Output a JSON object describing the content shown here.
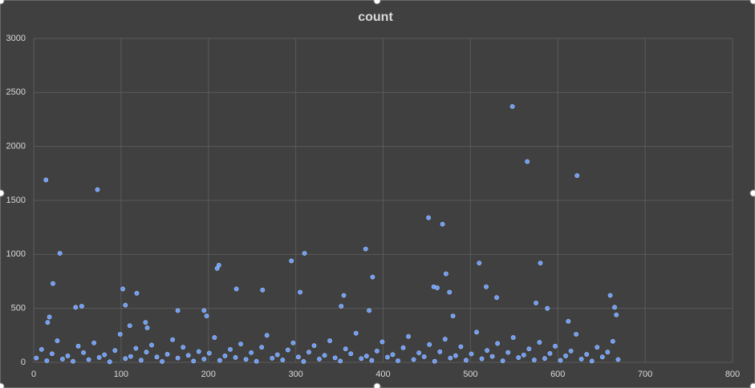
{
  "chart_data": {
    "type": "scatter",
    "title": "count",
    "x": [
      3,
      9,
      15,
      21,
      27,
      33,
      39,
      45,
      51,
      57,
      63,
      69,
      75,
      81,
      87,
      93,
      99,
      105,
      111,
      117,
      123,
      129,
      135,
      141,
      147,
      153,
      159,
      165,
      171,
      177,
      183,
      189,
      195,
      201,
      207,
      213,
      219,
      225,
      231,
      237,
      243,
      249,
      255,
      261,
      267,
      273,
      279,
      285,
      291,
      297,
      303,
      309,
      315,
      321,
      327,
      333,
      339,
      345,
      351,
      357,
      363,
      369,
      375,
      381,
      387,
      393,
      399,
      405,
      411,
      417,
      423,
      429,
      435,
      441,
      447,
      453,
      459,
      465,
      471,
      477,
      483,
      489,
      495,
      501,
      507,
      513,
      519,
      525,
      531,
      537,
      543,
      549,
      555,
      561,
      567,
      573,
      579,
      585,
      591,
      597,
      603,
      609,
      615,
      621,
      627,
      633,
      639,
      645,
      651,
      657,
      663,
      669,
      14,
      73,
      30,
      22,
      18,
      16,
      48,
      55,
      102,
      105,
      118,
      110,
      128,
      130,
      165,
      195,
      198,
      210,
      212,
      232,
      262,
      295,
      305,
      310,
      380,
      384,
      388,
      355,
      352,
      452,
      458,
      462,
      468,
      472,
      476,
      480,
      510,
      518,
      530,
      548,
      565,
      580,
      575,
      588,
      622,
      612,
      660,
      665,
      667
    ],
    "y": [
      40,
      120,
      15,
      80,
      200,
      30,
      60,
      10,
      150,
      90,
      25,
      180,
      45,
      70,
      5,
      110,
      260,
      35,
      55,
      130,
      20,
      95,
      160,
      50,
      8,
      75,
      210,
      40,
      140,
      65,
      12,
      100,
      30,
      85,
      230,
      18,
      60,
      120,
      45,
      170,
      28,
      90,
      10,
      140,
      250,
      38,
      70,
      22,
      115,
      180,
      50,
      8,
      95,
      155,
      30,
      65,
      200,
      42,
      12,
      125,
      80,
      270,
      35,
      58,
      18,
      105,
      190,
      48,
      72,
      15,
      135,
      240,
      26,
      88,
      52,
      165,
      10,
      98,
      215,
      40,
      62,
      145,
      20,
      78,
      280,
      33,
      110,
      55,
      175,
      14,
      92,
      230,
      44,
      68,
      125,
      22,
      185,
      36,
      82,
      150,
      18,
      60,
      105,
      260,
      30,
      74,
      12,
      140,
      50,
      95,
      195,
      26,
      1690,
      1600,
      1010,
      730,
      420,
      370,
      510,
      520,
      680,
      530,
      640,
      340,
      370,
      320,
      480,
      480,
      430,
      870,
      900,
      680,
      670,
      940,
      650,
      1010,
      1050,
      480,
      790,
      620,
      520,
      1340,
      700,
      690,
      1280,
      820,
      650,
      430,
      920,
      700,
      600,
      2370,
      1860,
      920,
      550,
      500,
      1730,
      380,
      620,
      510,
      440
    ],
    "xlim": [
      0,
      800
    ],
    "ylim": [
      0,
      3000
    ],
    "xticks": [
      0,
      100,
      200,
      300,
      400,
      500,
      600,
      700,
      800
    ],
    "yticks": [
      0,
      500,
      1000,
      1500,
      2000,
      2500,
      3000
    ],
    "grid": true,
    "color": "#6d9cf2"
  }
}
